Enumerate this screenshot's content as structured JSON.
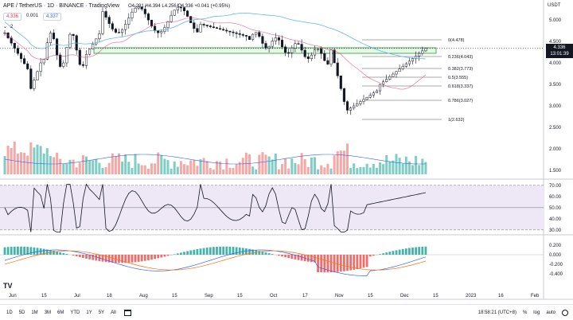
{
  "legend": {
    "symbol": "APE / TetherUS · 1D · BINANCE · TradingView",
    "ohlc": "O4.291 H4.394 L4.256 C4.336 +0.041 (+0.95%)",
    "bid": "4.336",
    "spread": "0.001",
    "ask": "4.337",
    "indicators_count": "2"
  },
  "price_axis": {
    "currency": "USDT",
    "ticks": [
      "5.000",
      "4.500",
      "4.000",
      "3.500",
      "3.000",
      "2.500",
      "2.000",
      "1.500"
    ],
    "last_price": "4.336",
    "countdown": "13:01:39"
  },
  "fib_levels": [
    {
      "label": "0(4.478)"
    },
    {
      "label": "0.236(4.043)"
    },
    {
      "label": "0.382(3.773)"
    },
    {
      "label": "0.5(3.555)"
    },
    {
      "label": "0.618(3.337)"
    },
    {
      "label": "0.786(3.027)"
    },
    {
      "label": "1(2.632)"
    }
  ],
  "rsi_axis": {
    "ticks": [
      "70.00",
      "60.00",
      "50.00",
      "40.00",
      "30.00"
    ]
  },
  "macd_axis": {
    "ticks": [
      "0.200",
      "0.000",
      "-0.200",
      "-0.400"
    ]
  },
  "time_axis": {
    "labels": [
      "Jun",
      "15",
      "Jul",
      "18",
      "Aug",
      "15",
      "Sep",
      "15",
      "Oct",
      "17",
      "Nov",
      "15",
      "Dec",
      "15",
      "2023",
      "16",
      "Feb"
    ]
  },
  "bottom_bar": {
    "ranges": [
      "1D",
      "5D",
      "1M",
      "3M",
      "6M",
      "YTD",
      "1Y",
      "5Y",
      "All"
    ],
    "clock": "18:58:21 (UTC+8)",
    "percent": "%",
    "log": "log",
    "auto": "auto"
  },
  "colors": {
    "up": "#26a69a",
    "down": "#ef5350",
    "vol_up": "#7fcdc4",
    "vol_down": "#f7a8a5",
    "rsi_fill": "#ede7f6",
    "support_zone": "#4caf50"
  },
  "logo_text": "TV"
}
